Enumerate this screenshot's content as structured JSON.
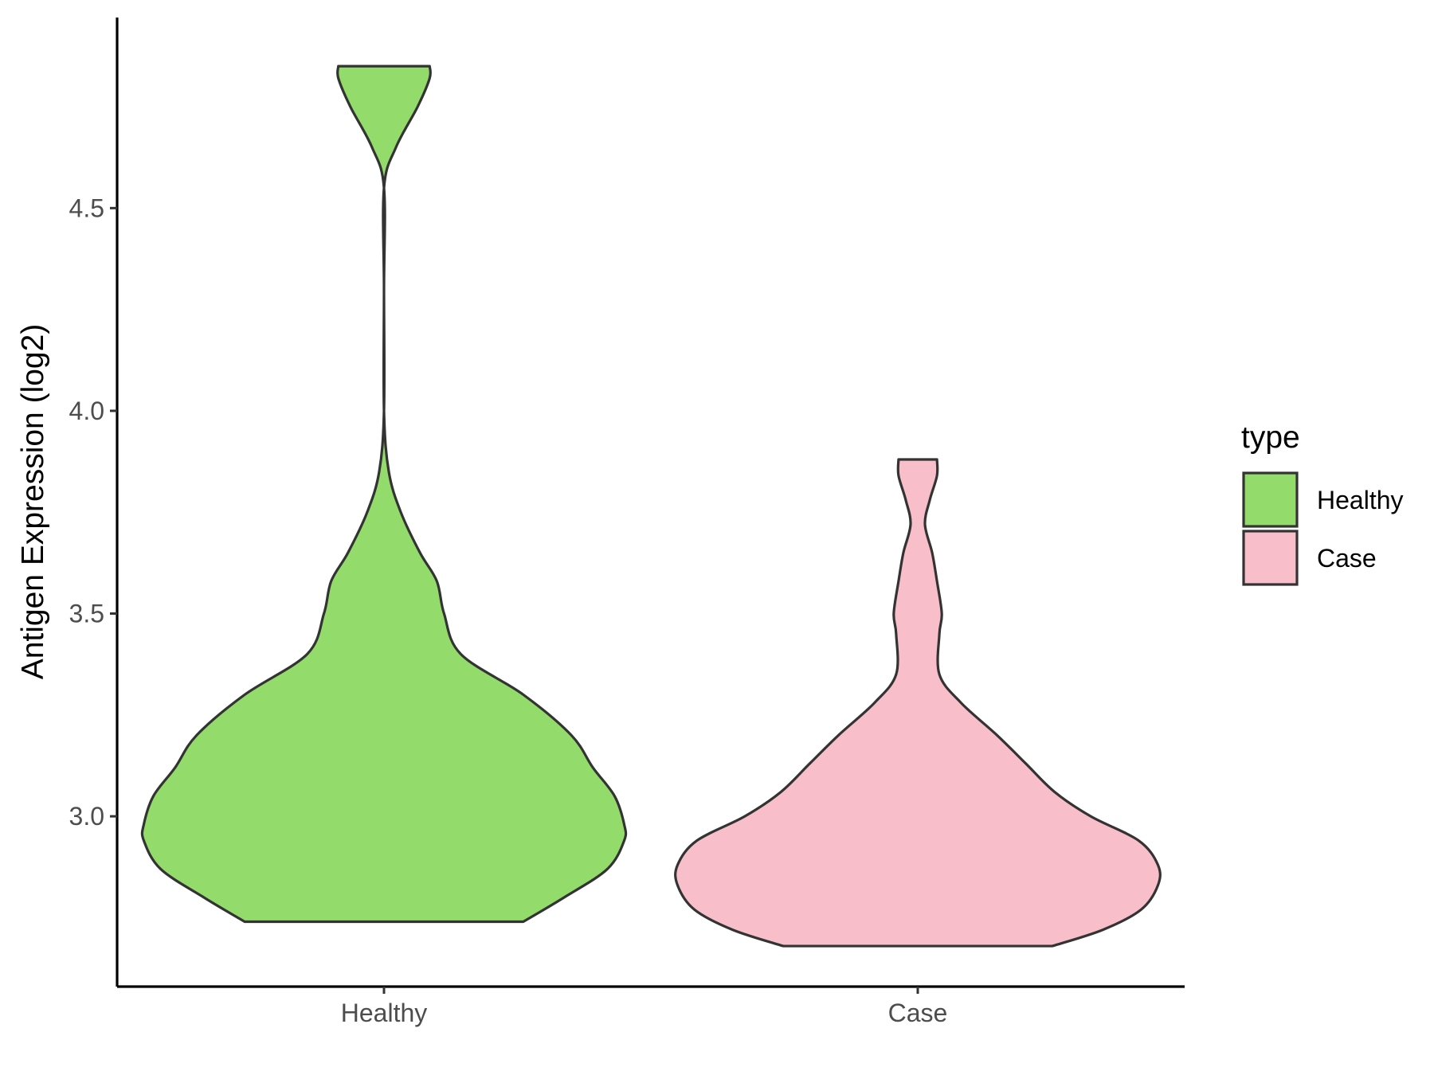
{
  "chart_data": {
    "type": "violin",
    "ylabel": "Antigen Expression (log2)",
    "xlabel": "",
    "categories": [
      "Healthy",
      "Case"
    ],
    "yticks": [
      3.0,
      3.5,
      4.0,
      4.5
    ],
    "ytick_labels": [
      "3.0",
      "3.5",
      "4.0",
      "4.5"
    ],
    "ylim": [
      2.58,
      4.97
    ],
    "legend": {
      "title": "type",
      "placement": "right",
      "entries": [
        {
          "label": "Healthy",
          "color": "#93dc6b"
        },
        {
          "label": "Case",
          "color": "#f8bfcb"
        }
      ]
    },
    "series": [
      {
        "category": "Healthy",
        "color": "#93dc6b",
        "min": 2.74,
        "max": 4.85,
        "density_profile": [
          [
            2.74,
            0.58
          ],
          [
            2.8,
            0.75
          ],
          [
            2.87,
            0.93
          ],
          [
            2.94,
            1.0
          ],
          [
            2.98,
            1.0
          ],
          [
            3.05,
            0.96
          ],
          [
            3.12,
            0.87
          ],
          [
            3.2,
            0.78
          ],
          [
            3.3,
            0.58
          ],
          [
            3.4,
            0.32
          ],
          [
            3.5,
            0.25
          ],
          [
            3.58,
            0.22
          ],
          [
            3.65,
            0.15
          ],
          [
            3.75,
            0.07
          ],
          [
            3.85,
            0.02
          ],
          [
            4.0,
            0.0
          ],
          [
            4.3,
            0.0
          ],
          [
            4.55,
            0.0
          ],
          [
            4.65,
            0.05
          ],
          [
            4.75,
            0.14
          ],
          [
            4.82,
            0.19
          ],
          [
            4.85,
            0.19
          ]
        ]
      },
      {
        "category": "Case",
        "color": "#f8bfcb",
        "min": 2.68,
        "max": 3.88,
        "density_profile": [
          [
            2.68,
            0.56
          ],
          [
            2.72,
            0.77
          ],
          [
            2.77,
            0.93
          ],
          [
            2.83,
            1.0
          ],
          [
            2.88,
            1.0
          ],
          [
            2.94,
            0.92
          ],
          [
            3.0,
            0.72
          ],
          [
            3.06,
            0.57
          ],
          [
            3.13,
            0.45
          ],
          [
            3.2,
            0.33
          ],
          [
            3.28,
            0.18
          ],
          [
            3.35,
            0.09
          ],
          [
            3.45,
            0.09
          ],
          [
            3.5,
            0.1
          ],
          [
            3.58,
            0.08
          ],
          [
            3.65,
            0.06
          ],
          [
            3.72,
            0.03
          ],
          [
            3.78,
            0.05
          ],
          [
            3.84,
            0.08
          ],
          [
            3.88,
            0.08
          ]
        ]
      }
    ]
  }
}
